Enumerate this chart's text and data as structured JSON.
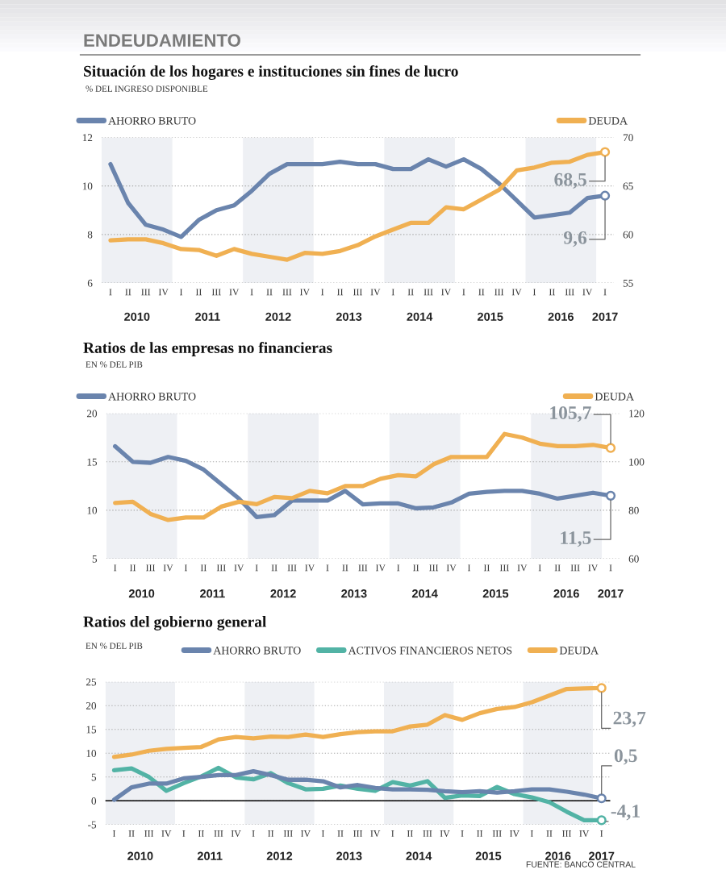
{
  "chart_data": [
    {
      "type": "line",
      "title": "Situación de los hogares e instituciones sin fines de lucro",
      "subtitle": "% DEL INGRESO DISPONIBLE",
      "categories": [
        "I",
        "II",
        "III",
        "IV",
        "I",
        "II",
        "III",
        "IV",
        "I",
        "II",
        "III",
        "IV",
        "I",
        "II",
        "III",
        "IV",
        "I",
        "II",
        "III",
        "IV",
        "I",
        "II",
        "III",
        "IV",
        "I",
        "II",
        "III",
        "IV",
        "I"
      ],
      "ylim": [
        6,
        12
      ],
      "yticks": [
        6,
        8,
        10,
        12
      ],
      "y2lim": [
        55,
        70
      ],
      "y2ticks": [
        55,
        60,
        65,
        70
      ],
      "grid": "y",
      "legend": "top",
      "series": [
        {
          "name": "AHORRO BRUTO",
          "color": "#6a84ad",
          "values": [
            10.9,
            9.3,
            8.4,
            8.2,
            7.9,
            8.6,
            9.0,
            9.2,
            9.8,
            10.5,
            10.9,
            10.9,
            10.9,
            11.0,
            10.9,
            10.9,
            10.7,
            10.7,
            11.1,
            10.8,
            11.1,
            10.7,
            10.1,
            9.4,
            8.7,
            8.8,
            8.9,
            9.5,
            9.6
          ],
          "value_labels": [
            null,
            null,
            null,
            null,
            null,
            null,
            null,
            null,
            null,
            null,
            null,
            null,
            null,
            null,
            null,
            null,
            null,
            null,
            null,
            null,
            null,
            null,
            null,
            null,
            null,
            null,
            null,
            null,
            "9,6"
          ]
        },
        {
          "name": "DEUDA",
          "color": "#f0b052",
          "axis": "y2",
          "values": [
            59.4,
            59.5,
            59.5,
            59.1,
            58.5,
            58.4,
            57.8,
            58.5,
            58.0,
            57.7,
            57.4,
            58.1,
            58.0,
            58.3,
            58.9,
            59.8,
            60.5,
            61.2,
            61.2,
            62.8,
            62.6,
            63.6,
            64.6,
            66.6,
            66.9,
            67.4,
            67.5,
            68.2,
            68.5
          ],
          "value_labels": [
            null,
            null,
            null,
            null,
            null,
            null,
            null,
            null,
            null,
            null,
            null,
            null,
            null,
            null,
            null,
            null,
            null,
            null,
            null,
            null,
            null,
            null,
            null,
            null,
            null,
            null,
            null,
            null,
            "68,5"
          ]
        }
      ],
      "annotations": [
        "2010",
        "2011",
        "2012",
        "2013",
        "2014",
        "2015",
        "2016",
        "2017",
        "ENDEUDAMIENTO"
      ]
    },
    {
      "type": "line",
      "title": "Ratios de las empresas no financieras",
      "subtitle": "EN % DEL PIB",
      "categories": [
        "I",
        "II",
        "III",
        "IV",
        "I",
        "II",
        "III",
        "IV",
        "I",
        "II",
        "III",
        "IV",
        "I",
        "II",
        "III",
        "IV",
        "I",
        "II",
        "III",
        "IV",
        "I",
        "II",
        "III",
        "IV",
        "I",
        "II",
        "III",
        "IV",
        "I"
      ],
      "ylim": [
        5,
        20
      ],
      "yticks": [
        5,
        10,
        15,
        20
      ],
      "y2lim": [
        60,
        120
      ],
      "y2ticks": [
        60,
        80,
        100,
        120
      ],
      "grid": "y",
      "legend": "top",
      "series": [
        {
          "name": "AHORRO BRUTO",
          "color": "#6a84ad",
          "values": [
            16.6,
            15.0,
            14.9,
            15.5,
            15.1,
            14.2,
            12.7,
            11.2,
            9.3,
            9.5,
            11.0,
            11.0,
            11.0,
            12.0,
            10.6,
            10.7,
            10.7,
            10.2,
            10.3,
            10.8,
            11.7,
            11.9,
            12.0,
            12.0,
            11.7,
            11.2,
            11.5,
            11.8,
            11.5
          ],
          "value_labels": [
            null,
            null,
            null,
            null,
            null,
            null,
            null,
            null,
            null,
            null,
            null,
            null,
            null,
            null,
            null,
            null,
            null,
            null,
            null,
            null,
            null,
            null,
            null,
            null,
            null,
            null,
            null,
            null,
            "11,5"
          ]
        },
        {
          "name": "DEUDA",
          "color": "#f0b052",
          "axis": "y2",
          "values": [
            83,
            83.5,
            78.5,
            76,
            77,
            77,
            81.5,
            83.5,
            82.5,
            85.5,
            85,
            88,
            87,
            90,
            90,
            93,
            94.5,
            94,
            99,
            102,
            102,
            102,
            111.5,
            110,
            107.5,
            106.5,
            106.5,
            107,
            105.7
          ],
          "value_labels": [
            null,
            null,
            null,
            null,
            null,
            null,
            null,
            null,
            null,
            null,
            null,
            null,
            null,
            null,
            null,
            null,
            null,
            null,
            null,
            null,
            null,
            null,
            null,
            null,
            null,
            null,
            null,
            null,
            "105,7"
          ]
        }
      ],
      "annotations": [
        "2010",
        "2011",
        "2012",
        "2013",
        "2014",
        "2015",
        "2016",
        "2017"
      ]
    },
    {
      "type": "line",
      "title": "Ratios del gobierno general",
      "subtitle": "EN % DEL PIB",
      "categories": [
        "I",
        "II",
        "III",
        "IV",
        "I",
        "II",
        "III",
        "IV",
        "I",
        "II",
        "III",
        "IV",
        "I",
        "II",
        "III",
        "IV",
        "I",
        "II",
        "III",
        "IV",
        "I",
        "II",
        "III",
        "IV",
        "I",
        "II",
        "III",
        "IV",
        "I"
      ],
      "ylim": [
        -5,
        25
      ],
      "yticks": [
        -5,
        0,
        5,
        10,
        15,
        20,
        25
      ],
      "grid": "y",
      "legend": "top",
      "ref_lines": [
        {
          "axis": "y",
          "value": 0,
          "color": "#000000"
        }
      ],
      "series": [
        {
          "name": "AHORRO BRUTO",
          "color": "#6a84ad",
          "values": [
            0.2,
            2.8,
            3.6,
            3.6,
            4.7,
            5.0,
            5.4,
            5.4,
            6.2,
            5.4,
            4.4,
            4.4,
            4.1,
            2.8,
            3.3,
            2.7,
            2.4,
            2.4,
            2.3,
            2.0,
            1.8,
            2.0,
            1.7,
            2.0,
            2.4,
            2.4,
            1.9,
            1.3,
            0.5
          ],
          "value_labels": [
            null,
            null,
            null,
            null,
            null,
            null,
            null,
            null,
            null,
            null,
            null,
            null,
            null,
            null,
            null,
            null,
            null,
            null,
            null,
            null,
            null,
            null,
            null,
            null,
            null,
            null,
            null,
            null,
            "0,5"
          ]
        },
        {
          "name": "ACTIVOS FINANCIEROS NETOS",
          "color": "#52b3a5",
          "values": [
            6.4,
            6.8,
            5.0,
            2.1,
            3.7,
            5.1,
            6.9,
            4.9,
            4.5,
            5.8,
            3.7,
            2.4,
            2.5,
            3.2,
            2.5,
            2.1,
            3.9,
            3.2,
            4.1,
            0.6,
            1.1,
            1.0,
            2.9,
            1.4,
            0.7,
            -0.3,
            -2.3,
            -4.1,
            -4.1
          ],
          "value_labels": [
            null,
            null,
            null,
            null,
            null,
            null,
            null,
            null,
            null,
            null,
            null,
            null,
            null,
            null,
            null,
            null,
            null,
            null,
            null,
            null,
            null,
            null,
            null,
            null,
            null,
            null,
            null,
            null,
            "-4,1"
          ]
        },
        {
          "name": "DEUDA",
          "color": "#f0b052",
          "values": [
            9.2,
            9.7,
            10.5,
            10.9,
            11.1,
            11.3,
            12.9,
            13.4,
            13.1,
            13.5,
            13.4,
            13.9,
            13.4,
            14.0,
            14.4,
            14.6,
            14.6,
            15.6,
            16.0,
            18.0,
            17.0,
            18.4,
            19.3,
            19.7,
            20.7,
            22.1,
            23.5,
            23.6,
            23.7
          ],
          "value_labels": [
            null,
            null,
            null,
            null,
            null,
            null,
            null,
            null,
            null,
            null,
            null,
            null,
            null,
            null,
            null,
            null,
            null,
            null,
            null,
            null,
            null,
            null,
            null,
            null,
            null,
            null,
            null,
            null,
            "23,7"
          ]
        }
      ],
      "annotations": [
        "2010",
        "2011",
        "2012",
        "2013",
        "2014",
        "2015",
        "2016",
        "2017",
        "FUENTE: BANCO CENTRAL"
      ]
    }
  ]
}
